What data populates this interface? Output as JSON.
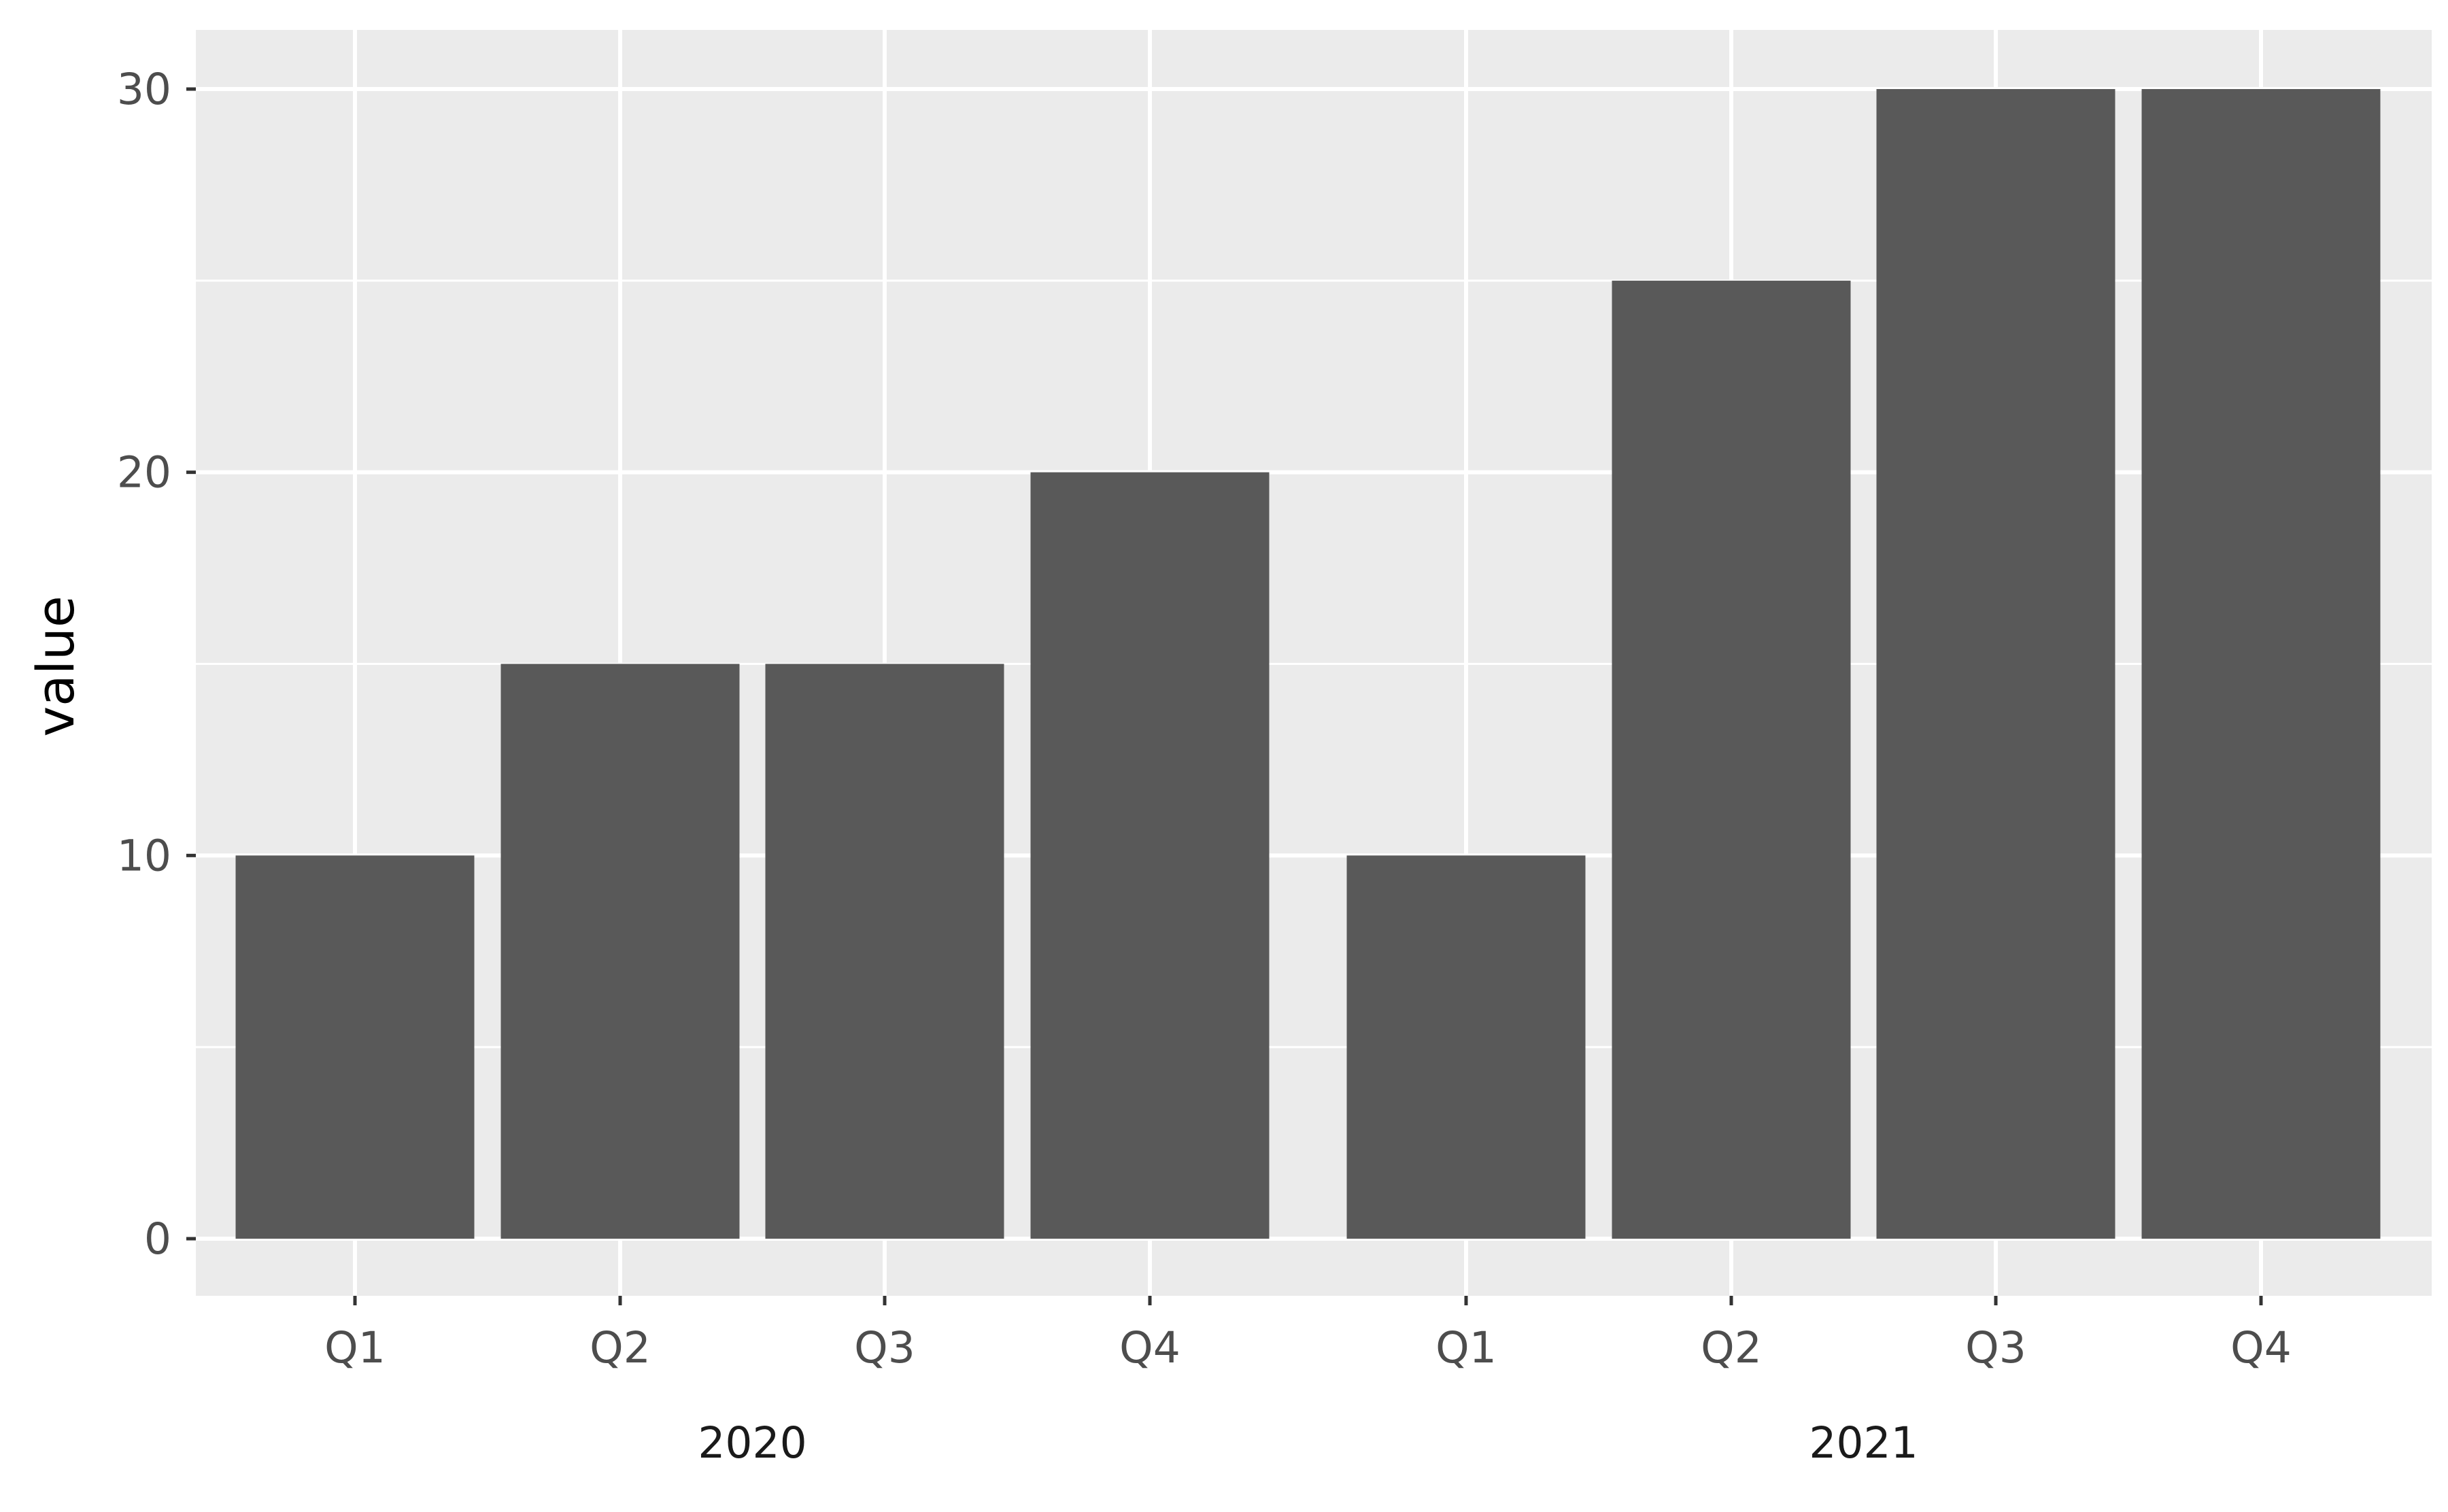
{
  "chart_data": {
    "type": "bar",
    "title": "",
    "xlabel": "",
    "ylabel": "value",
    "ylim": [
      0,
      30
    ],
    "y_ticks": [
      "0",
      "10",
      "20",
      "30"
    ],
    "grid": true,
    "groups": [
      {
        "label": "2020",
        "categories": [
          "Q1",
          "Q2",
          "Q3",
          "Q4"
        ],
        "values": [
          10,
          15,
          15,
          20
        ]
      },
      {
        "label": "2021",
        "categories": [
          "Q1",
          "Q2",
          "Q3",
          "Q4"
        ],
        "values": [
          10,
          25,
          30,
          30
        ]
      }
    ],
    "colors": {
      "panel_background": "#ebebeb",
      "grid": "#ffffff",
      "bar": "#595959",
      "tick": "#333333"
    }
  }
}
